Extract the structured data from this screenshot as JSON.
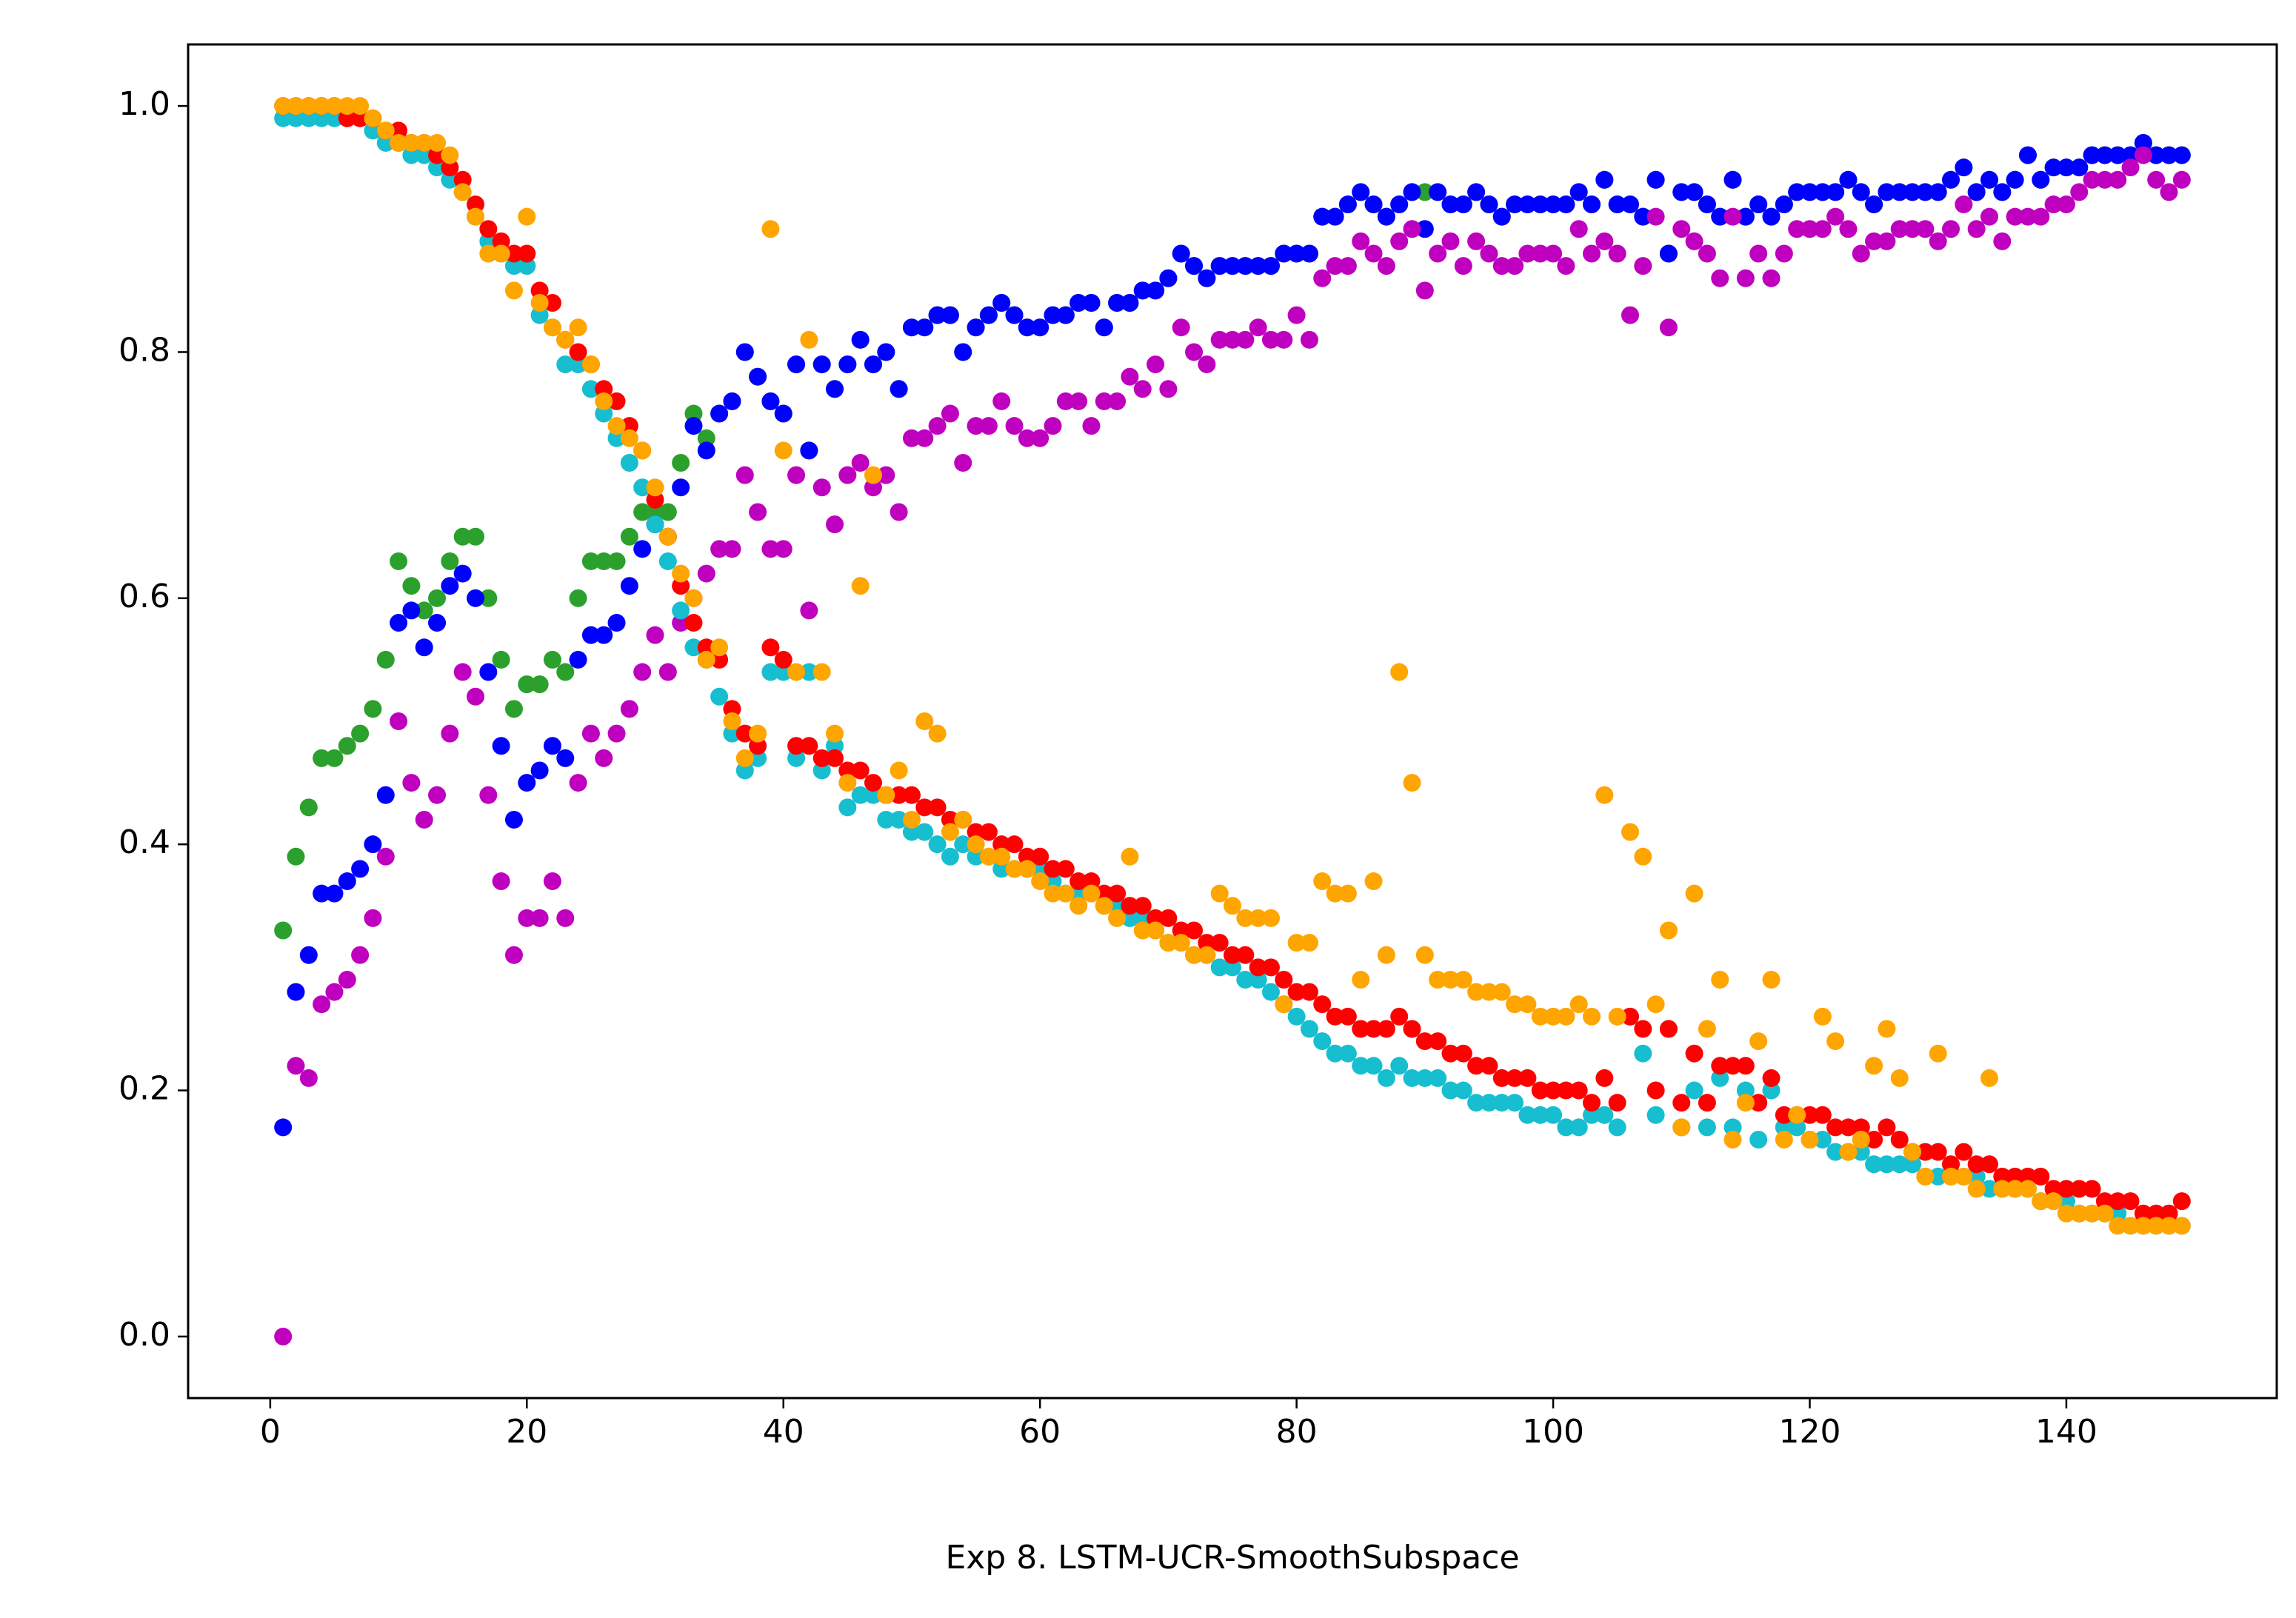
{
  "chart_data": {
    "type": "scatter",
    "xlabel": "Exp 8. LSTM-UCR-SmoothSubspace",
    "xlim": [
      -6.4,
      156.4
    ],
    "ylim": [
      -0.05,
      1.05
    ],
    "xticks": [
      0,
      20,
      40,
      60,
      80,
      100,
      120,
      140
    ],
    "yticks": [
      {
        "value": 0,
        "label": "0.0"
      },
      0.2,
      0.4,
      0.6,
      0.8,
      {
        "value": 1,
        "label": "1.0"
      }
    ],
    "grid": false,
    "x": [
      1,
      2,
      3,
      4,
      5,
      6,
      7,
      8,
      9,
      10,
      11,
      12,
      13,
      14,
      15,
      16,
      17,
      18,
      19,
      20,
      21,
      22,
      23,
      24,
      25,
      26,
      27,
      28,
      29,
      30,
      31,
      32,
      33,
      34,
      35,
      36,
      37,
      38,
      39,
      40,
      41,
      42,
      43,
      44,
      45,
      46,
      47,
      48,
      49,
      50,
      51,
      52,
      53,
      54,
      55,
      56,
      57,
      58,
      59,
      60,
      61,
      62,
      63,
      64,
      65,
      66,
      67,
      68,
      69,
      70,
      71,
      72,
      73,
      74,
      75,
      76,
      77,
      78,
      79,
      80,
      81,
      82,
      83,
      84,
      85,
      86,
      87,
      88,
      89,
      90,
      91,
      92,
      93,
      94,
      95,
      96,
      97,
      98,
      99,
      100,
      101,
      102,
      103,
      104,
      105,
      106,
      107,
      108,
      109,
      110,
      111,
      112,
      113,
      114,
      115,
      116,
      117,
      118,
      119,
      120,
      121,
      122,
      123,
      124,
      125,
      126,
      127,
      128,
      129,
      130,
      131,
      132,
      133,
      134,
      135,
      136,
      137,
      138,
      139,
      140,
      141,
      142,
      143,
      144,
      145,
      146,
      147,
      148,
      149
    ],
    "series": [
      {
        "color": "#2ca02c",
        "values": [
          0.33,
          0.39,
          0.43,
          0.47,
          0.47,
          0.48,
          0.49,
          0.51,
          0.55,
          0.63,
          0.61,
          0.59,
          0.6,
          0.63,
          0.65,
          0.65,
          0.6,
          0.55,
          0.51,
          0.53,
          0.53,
          0.55,
          0.54,
          0.6,
          0.63,
          0.63,
          0.63,
          0.65,
          0.67,
          0.67,
          0.67,
          0.71,
          0.75,
          0.73,
          0.75,
          0.76,
          0.8,
          0.78,
          0.76,
          0.75,
          0.79,
          0.72,
          0.79,
          0.77,
          0.79,
          0.81,
          0.79,
          0.8,
          0.77,
          0.82,
          0.82,
          0.83,
          0.83,
          0.8,
          0.82,
          0.83,
          0.84,
          0.83,
          0.82,
          0.82,
          0.83,
          0.83,
          0.84,
          0.84,
          0.82,
          0.84,
          0.84,
          0.85,
          0.85,
          0.86,
          0.88,
          0.87,
          0.86,
          0.87,
          0.87,
          0.87,
          0.87,
          0.87,
          0.88,
          0.88,
          0.88,
          0.91,
          0.91,
          0.92,
          0.93,
          0.92,
          0.91,
          0.92,
          0.93,
          0.93,
          0.93,
          0.92,
          0.92,
          0.93,
          0.92,
          0.91,
          0.92,
          0.92,
          0.92,
          0.92,
          0.92,
          0.93,
          0.92,
          0.94,
          0.92,
          0.92,
          0.91,
          0.94,
          0.88,
          0.93,
          0.93,
          0.92,
          0.91,
          0.94,
          0.91,
          0.92,
          0.91,
          0.92,
          0.93,
          0.93,
          0.93,
          0.93,
          0.94,
          0.93,
          0.92,
          0.93,
          0.93,
          0.93,
          0.93,
          0.93,
          0.94,
          0.95,
          0.93,
          0.94,
          0.93,
          0.94,
          0.96,
          0.94,
          0.95,
          0.95,
          0.95,
          0.96,
          0.96,
          0.96,
          0.96,
          0.97,
          0.96,
          0.96,
          0.96
        ]
      },
      {
        "color": "#0000ff",
        "values": [
          0.17,
          0.28,
          0.31,
          0.36,
          0.36,
          0.37,
          0.38,
          0.4,
          0.44,
          0.58,
          0.59,
          0.56,
          0.58,
          0.61,
          0.62,
          0.6,
          0.54,
          0.48,
          0.42,
          0.45,
          0.46,
          0.48,
          0.47,
          0.55,
          0.57,
          0.57,
          0.58,
          0.61,
          0.64,
          0.66,
          0.65,
          0.69,
          0.74,
          0.72,
          0.75,
          0.76,
          0.8,
          0.78,
          0.76,
          0.75,
          0.79,
          0.72,
          0.79,
          0.77,
          0.79,
          0.81,
          0.79,
          0.8,
          0.77,
          0.82,
          0.82,
          0.83,
          0.83,
          0.8,
          0.82,
          0.83,
          0.84,
          0.83,
          0.82,
          0.82,
          0.83,
          0.83,
          0.84,
          0.84,
          0.82,
          0.84,
          0.84,
          0.85,
          0.85,
          0.86,
          0.88,
          0.87,
          0.86,
          0.87,
          0.87,
          0.87,
          0.87,
          0.87,
          0.88,
          0.88,
          0.88,
          0.91,
          0.91,
          0.92,
          0.93,
          0.92,
          0.91,
          0.92,
          0.93,
          0.9,
          0.93,
          0.92,
          0.92,
          0.93,
          0.92,
          0.91,
          0.92,
          0.92,
          0.92,
          0.92,
          0.92,
          0.93,
          0.92,
          0.94,
          0.92,
          0.92,
          0.91,
          0.94,
          0.88,
          0.93,
          0.93,
          0.92,
          0.91,
          0.94,
          0.91,
          0.92,
          0.91,
          0.92,
          0.93,
          0.93,
          0.93,
          0.93,
          0.94,
          0.93,
          0.92,
          0.93,
          0.93,
          0.93,
          0.93,
          0.93,
          0.94,
          0.95,
          0.93,
          0.94,
          0.93,
          0.94,
          0.96,
          0.94,
          0.95,
          0.95,
          0.95,
          0.96,
          0.96,
          0.96,
          0.96,
          0.97,
          0.96,
          0.96,
          0.96
        ]
      },
      {
        "color": "#bf00bf",
        "values": [
          0.0,
          0.22,
          0.21,
          0.27,
          0.28,
          0.29,
          0.31,
          0.34,
          0.39,
          0.5,
          0.45,
          0.42,
          0.44,
          0.49,
          0.54,
          0.52,
          0.44,
          0.37,
          0.31,
          0.34,
          0.34,
          0.37,
          0.34,
          0.45,
          0.49,
          0.47,
          0.49,
          0.51,
          0.54,
          0.57,
          0.54,
          0.58,
          0.6,
          0.62,
          0.64,
          0.64,
          0.7,
          0.67,
          0.64,
          0.64,
          0.7,
          0.59,
          0.69,
          0.66,
          0.7,
          0.71,
          0.69,
          0.7,
          0.67,
          0.73,
          0.73,
          0.74,
          0.75,
          0.71,
          0.74,
          0.74,
          0.76,
          0.74,
          0.73,
          0.73,
          0.74,
          0.76,
          0.76,
          0.74,
          0.76,
          0.76,
          0.78,
          0.77,
          0.79,
          0.77,
          0.82,
          0.8,
          0.79,
          0.81,
          0.81,
          0.81,
          0.82,
          0.81,
          0.81,
          0.83,
          0.81,
          0.86,
          0.87,
          0.87,
          0.89,
          0.88,
          0.87,
          0.89,
          0.9,
          0.85,
          0.88,
          0.89,
          0.87,
          0.89,
          0.88,
          0.87,
          0.87,
          0.88,
          0.88,
          0.88,
          0.87,
          0.9,
          0.88,
          0.89,
          0.88,
          0.83,
          0.87,
          0.91,
          0.82,
          0.9,
          0.89,
          0.88,
          0.86,
          0.91,
          0.86,
          0.88,
          0.86,
          0.88,
          0.9,
          0.9,
          0.9,
          0.91,
          0.9,
          0.88,
          0.89,
          0.89,
          0.9,
          0.9,
          0.9,
          0.89,
          0.9,
          0.92,
          0.9,
          0.91,
          0.89,
          0.91,
          0.91,
          0.91,
          0.92,
          0.92,
          0.93,
          0.94,
          0.94,
          0.94,
          0.95,
          0.96,
          0.94,
          0.93,
          0.94
        ]
      },
      {
        "color": "#17becf",
        "values": [
          0.99,
          0.99,
          0.99,
          0.99,
          0.99,
          0.99,
          0.99,
          0.98,
          0.97,
          0.97,
          0.96,
          0.96,
          0.95,
          0.94,
          0.93,
          0.91,
          0.89,
          0.88,
          0.87,
          0.87,
          0.83,
          0.82,
          0.79,
          0.79,
          0.77,
          0.75,
          0.73,
          0.71,
          0.69,
          0.66,
          0.63,
          0.59,
          0.56,
          0.55,
          0.52,
          0.49,
          0.46,
          0.47,
          0.54,
          0.54,
          0.47,
          0.54,
          0.46,
          0.48,
          0.43,
          0.44,
          0.44,
          0.42,
          0.42,
          0.41,
          0.41,
          0.4,
          0.39,
          0.4,
          0.39,
          0.39,
          0.38,
          0.38,
          0.38,
          0.38,
          0.37,
          0.36,
          0.36,
          0.36,
          0.35,
          0.35,
          0.34,
          0.34,
          0.33,
          0.32,
          0.32,
          0.31,
          0.31,
          0.3,
          0.3,
          0.29,
          0.29,
          0.28,
          0.27,
          0.26,
          0.25,
          0.24,
          0.23,
          0.23,
          0.22,
          0.22,
          0.21,
          0.22,
          0.21,
          0.21,
          0.21,
          0.2,
          0.2,
          0.19,
          0.19,
          0.19,
          0.19,
          0.18,
          0.18,
          0.18,
          0.17,
          0.17,
          0.18,
          0.18,
          0.17,
          0.26,
          0.23,
          0.18,
          0.25,
          0.17,
          0.2,
          0.17,
          0.21,
          0.17,
          0.2,
          0.16,
          0.2,
          0.17,
          0.17,
          0.16,
          0.16,
          0.15,
          0.15,
          0.15,
          0.14,
          0.14,
          0.14,
          0.14,
          0.13,
          0.13,
          0.13,
          0.13,
          0.13,
          0.12,
          0.12,
          0.12,
          0.12,
          0.11,
          0.11,
          0.11,
          0.1,
          0.1,
          0.1,
          0.1,
          0.09,
          0.09,
          0.09,
          0.09,
          0.09
        ]
      },
      {
        "color": "#ff0000",
        "values": [
          1.0,
          1.0,
          1.0,
          1.0,
          1.0,
          0.99,
          0.99,
          0.99,
          0.98,
          0.98,
          0.97,
          0.97,
          0.96,
          0.95,
          0.94,
          0.92,
          0.9,
          0.89,
          0.88,
          0.88,
          0.85,
          0.84,
          0.81,
          0.8,
          0.79,
          0.77,
          0.76,
          0.74,
          0.72,
          0.68,
          0.65,
          0.61,
          0.58,
          0.56,
          0.55,
          0.51,
          0.49,
          0.48,
          0.56,
          0.55,
          0.48,
          0.48,
          0.47,
          0.47,
          0.46,
          0.46,
          0.45,
          0.44,
          0.44,
          0.44,
          0.43,
          0.43,
          0.42,
          0.42,
          0.41,
          0.41,
          0.4,
          0.4,
          0.39,
          0.39,
          0.38,
          0.38,
          0.37,
          0.37,
          0.36,
          0.36,
          0.35,
          0.35,
          0.34,
          0.34,
          0.33,
          0.33,
          0.32,
          0.32,
          0.31,
          0.31,
          0.3,
          0.3,
          0.29,
          0.28,
          0.28,
          0.27,
          0.26,
          0.26,
          0.25,
          0.25,
          0.25,
          0.26,
          0.25,
          0.24,
          0.24,
          0.23,
          0.23,
          0.22,
          0.22,
          0.21,
          0.21,
          0.21,
          0.2,
          0.2,
          0.2,
          0.2,
          0.19,
          0.21,
          0.19,
          0.26,
          0.25,
          0.2,
          0.25,
          0.19,
          0.23,
          0.19,
          0.22,
          0.22,
          0.22,
          0.19,
          0.21,
          0.18,
          0.18,
          0.18,
          0.18,
          0.17,
          0.17,
          0.17,
          0.16,
          0.17,
          0.16,
          0.15,
          0.15,
          0.15,
          0.14,
          0.15,
          0.14,
          0.14,
          0.13,
          0.13,
          0.13,
          0.13,
          0.12,
          0.12,
          0.12,
          0.12,
          0.11,
          0.11,
          0.11,
          0.1,
          0.1,
          0.1,
          0.11
        ]
      },
      {
        "color": "#ffa500",
        "values": [
          1.0,
          1.0,
          1.0,
          1.0,
          1.0,
          1.0,
          1.0,
          0.99,
          0.98,
          0.97,
          0.97,
          0.97,
          0.97,
          0.96,
          0.93,
          0.91,
          0.88,
          0.88,
          0.85,
          0.91,
          0.84,
          0.82,
          0.81,
          0.82,
          0.79,
          0.76,
          0.74,
          0.73,
          0.72,
          0.69,
          0.65,
          0.62,
          0.6,
          0.55,
          0.56,
          0.5,
          0.47,
          0.49,
          0.9,
          0.72,
          0.54,
          0.81,
          0.54,
          0.49,
          0.45,
          0.61,
          0.7,
          0.44,
          0.46,
          0.42,
          0.5,
          0.49,
          0.41,
          0.42,
          0.4,
          0.39,
          0.39,
          0.38,
          0.38,
          0.37,
          0.36,
          0.36,
          0.35,
          0.36,
          0.35,
          0.34,
          0.39,
          0.33,
          0.33,
          0.32,
          0.32,
          0.31,
          0.31,
          0.36,
          0.35,
          0.34,
          0.34,
          0.34,
          0.27,
          0.32,
          0.32,
          0.37,
          0.36,
          0.36,
          0.29,
          0.37,
          0.31,
          0.54,
          0.45,
          0.31,
          0.29,
          0.29,
          0.29,
          0.28,
          0.28,
          0.28,
          0.27,
          0.27,
          0.26,
          0.26,
          0.26,
          0.27,
          0.26,
          0.44,
          0.26,
          0.41,
          0.39,
          0.27,
          0.33,
          0.17,
          0.36,
          0.25,
          0.29,
          0.16,
          0.19,
          0.24,
          0.29,
          0.16,
          0.18,
          0.16,
          0.26,
          0.24,
          0.15,
          0.16,
          0.22,
          0.25,
          0.21,
          0.15,
          0.13,
          0.23,
          0.13,
          0.13,
          0.12,
          0.21,
          0.12,
          0.12,
          0.12,
          0.11,
          0.11,
          0.1,
          0.1,
          0.1,
          0.1,
          0.09,
          0.09,
          0.09,
          0.09,
          0.09,
          0.09
        ]
      }
    ]
  }
}
